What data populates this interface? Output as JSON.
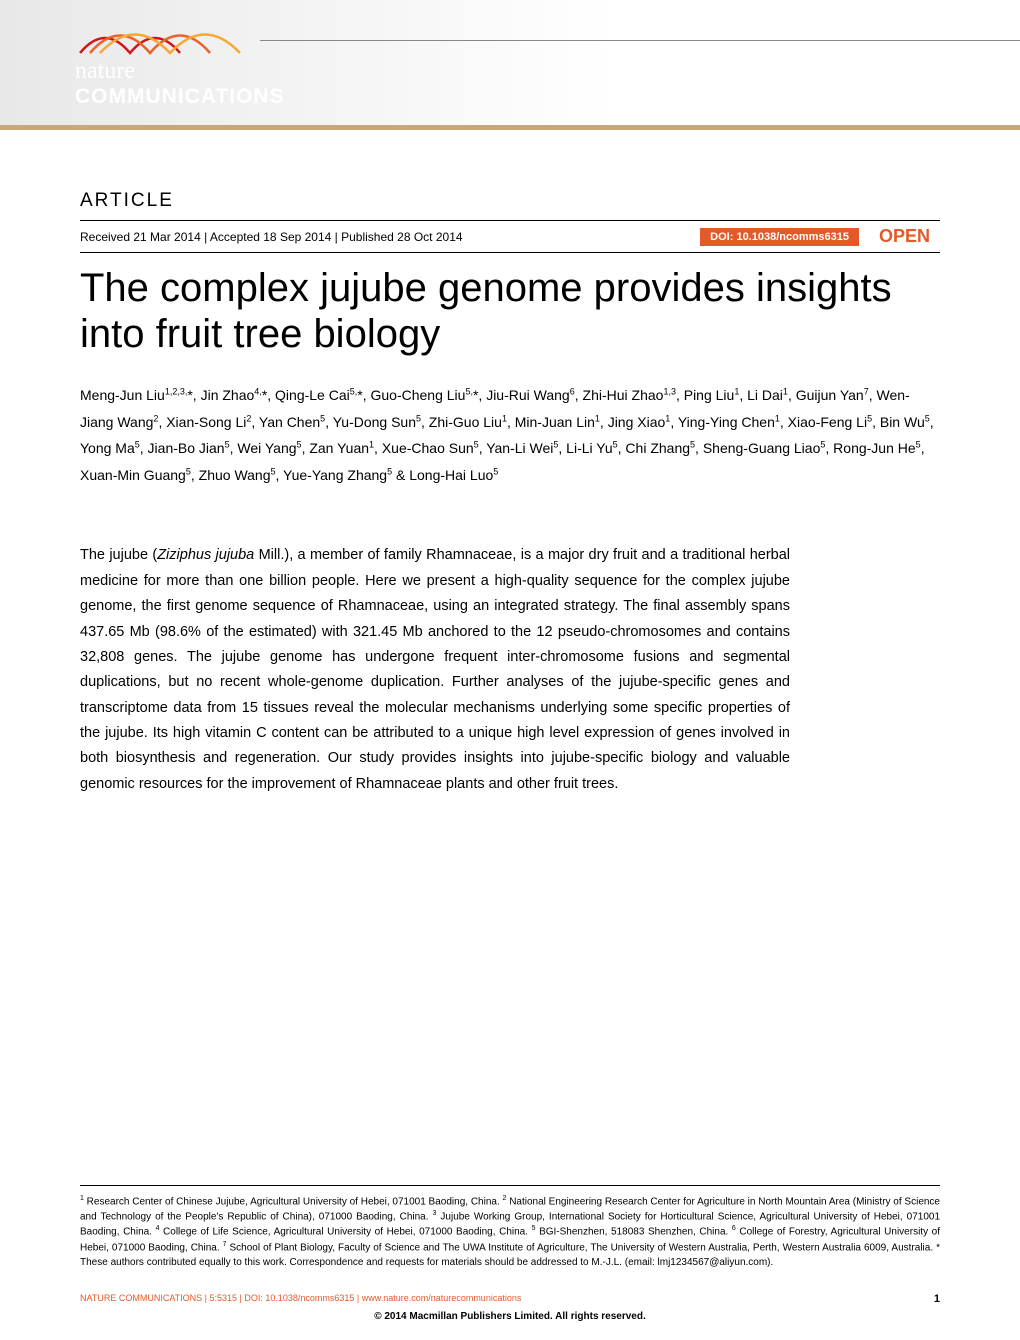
{
  "header": {
    "logo_line1": "nature",
    "logo_line2": "COMMUNICATIONS",
    "wave_colors": [
      "#d4141a",
      "#e8642a",
      "#f5a834"
    ],
    "banner_border_color": "#c8a878"
  },
  "article": {
    "label": "ARTICLE",
    "received": "Received 21 Mar 2014",
    "accepted": "Accepted 18 Sep 2014",
    "published": "Published 28 Oct 2014",
    "doi": "DOI: 10.1038/ncomms6315",
    "doi_bg_color": "#e35a2a",
    "open_label": "OPEN",
    "open_color": "#e35a2a",
    "title": "The complex jujube genome provides insights into fruit tree biology"
  },
  "authors_html": "Meng-Jun Liu<sup>1,2,3,</sup>*, Jin Zhao<sup>4,</sup>*, Qing-Le Cai<sup>5,</sup>*, Guo-Cheng Liu<sup>5,</sup>*, Jiu-Rui Wang<sup>6</sup>, Zhi-Hui Zhao<sup>1,3</sup>, Ping Liu<sup>1</sup>, Li Dai<sup>1</sup>, Guijun Yan<sup>7</sup>, Wen-Jiang Wang<sup>2</sup>, Xian-Song Li<sup>2</sup>, Yan Chen<sup>5</sup>, Yu-Dong Sun<sup>5</sup>, Zhi-Guo Liu<sup>1</sup>, Min-Juan Lin<sup>1</sup>, Jing Xiao<sup>1</sup>, Ying-Ying Chen<sup>1</sup>, Xiao-Feng Li<sup>5</sup>, Bin Wu<sup>5</sup>, Yong Ma<sup>5</sup>, Jian-Bo Jian<sup>5</sup>, Wei Yang<sup>5</sup>, Zan Yuan<sup>1</sup>, Xue-Chao Sun<sup>5</sup>, Yan-Li Wei<sup>5</sup>, Li-Li Yu<sup>5</sup>, Chi Zhang<sup>5</sup>, Sheng-Guang Liao<sup>5</sup>, Rong-Jun He<sup>5</sup>, Xuan-Min Guang<sup>5</sup>, Zhuo Wang<sup>5</sup>, Yue-Yang Zhang<sup>5</sup> & Long-Hai Luo<sup>5</sup>",
  "abstract_html": "The jujube (<em>Ziziphus jujuba</em> Mill.), a member of family Rhamnaceae, is a major dry fruit and a traditional herbal medicine for more than one billion people. Here we present a high-quality sequence for the complex jujube genome, the first genome sequence of Rhamnaceae, using an integrated strategy. The final assembly spans 437.65 Mb (98.6% of the estimated) with 321.45 Mb anchored to the 12 pseudo-chromosomes and contains 32,808 genes. The jujube genome has undergone frequent inter-chromosome fusions and segmental duplications, but no recent whole-genome duplication. Further analyses of the jujube-specific genes and transcriptome data from 15 tissues reveal the molecular mechanisms underlying some specific properties of the jujube. Its high vitamin C content can be attributed to a unique high level expression of genes involved in both biosynthesis and regeneration. Our study provides insights into jujube-specific biology and valuable genomic resources for the improvement of Rhamnaceae plants and other fruit trees.",
  "affiliations_html": "<sup>1</sup> Research Center of Chinese Jujube, Agricultural University of Hebei, 071001 Baoding, China. <sup>2</sup> National Engineering Research Center for Agriculture in North Mountain Area (Ministry of Science and Technology of the People's Republic of China), 071000 Baoding, China. <sup>3</sup> Jujube Working Group, International Society for Horticultural Science, Agricultural University of Hebei, 071001 Baoding, China. <sup>4</sup> College of Life Science, Agricultural University of Hebei, 071000 Baoding, China. <sup>5</sup> BGI-Shenzhen, 518083 Shenzhen, China. <sup>6</sup> College of Forestry, Agricultural University of Hebei, 071000 Baoding, China. <sup>7</sup> School of Plant Biology, Faculty of Science and The UWA Institute of Agriculture, The University of Western Australia, Perth, Western Australia 6009, Australia. * These authors contributed equally to this work. Correspondence and requests for materials should be addressed to M.-J.L. (email: lmj1234567@aliyun.com).",
  "footer": {
    "citation": "NATURE COMMUNICATIONS | 5:5315 | DOI: 10.1038/ncomms6315 | www.nature.com/naturecommunications",
    "page": "1",
    "copyright": "© 2014 Macmillan Publishers Limited. All rights reserved.",
    "citation_color": "#e35a2a"
  }
}
